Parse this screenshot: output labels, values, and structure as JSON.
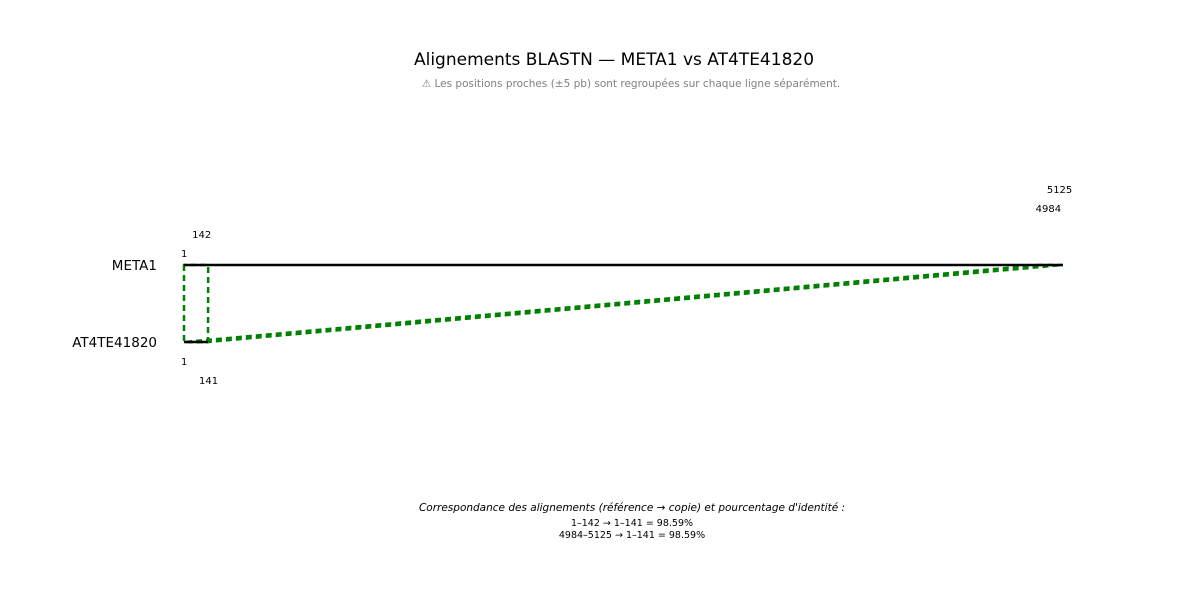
{
  "header": {
    "title": "Alignements BLASTN — META1 vs AT4TE41820",
    "note": "⚠ Les positions proches (±5 pb) sont regroupées sur chaque ligne séparément."
  },
  "sequences": {
    "reference": {
      "name": "META1",
      "length": 5125
    },
    "copy": {
      "name": "AT4TE41820",
      "length": 141
    }
  },
  "alignments": [
    {
      "ref_start": 1,
      "ref_end": 142,
      "copy_start": 1,
      "copy_end": 141,
      "identity": 98.59,
      "ref_labels": [
        "1",
        "142"
      ],
      "copy_labels": [
        "1",
        "141"
      ]
    },
    {
      "ref_start": 4984,
      "ref_end": 5125,
      "copy_start": 1,
      "copy_end": 141,
      "identity": 98.59,
      "ref_labels": [
        "4984",
        "5125"
      ],
      "copy_labels": []
    }
  ],
  "colors": {
    "sequence_line": "#000000",
    "alignment": "#008000",
    "note": "#808080"
  },
  "footer": {
    "heading": "Correspondance des alignements (référence → copie) et pourcentage d'identité :",
    "lines": [
      "1–142 → 1–141 = 98.59%",
      "4984–5125 → 1–141 = 98.59%"
    ]
  }
}
